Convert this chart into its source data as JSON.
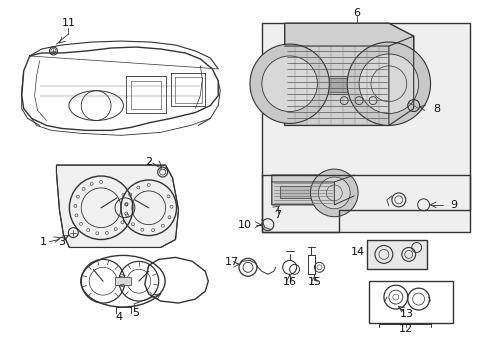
{
  "bg_color": "#ffffff",
  "line_color": "#333333",
  "fig_width": 4.89,
  "fig_height": 3.6,
  "dpi": 100,
  "label_fontsize": 7.5,
  "lw": 0.7
}
